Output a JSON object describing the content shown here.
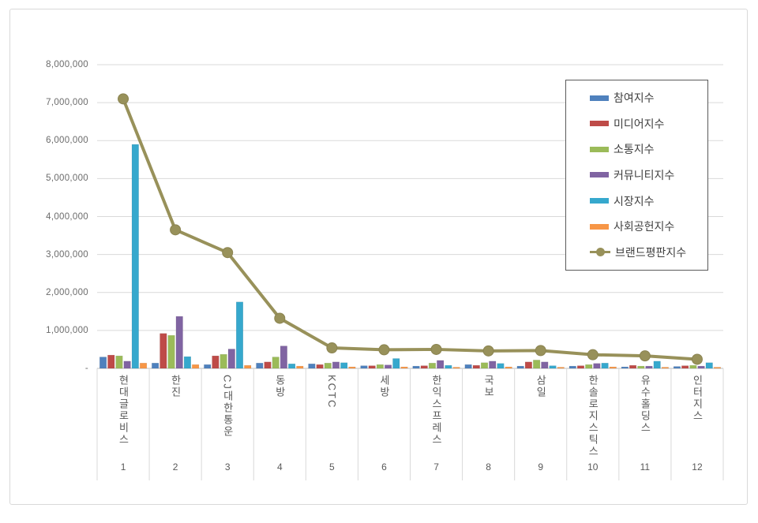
{
  "chart_data": {
    "type": "bar+line",
    "title": "",
    "categories": [
      "현대글로비스",
      "한진",
      "CJ대한통운",
      "동방",
      "KCTC",
      "세방",
      "한익스프레스",
      "국보",
      "삼일",
      "한솔로지스틱스",
      "유수홀딩스",
      "인터지스"
    ],
    "ranks": [
      "1",
      "2",
      "3",
      "4",
      "5",
      "6",
      "7",
      "8",
      "9",
      "10",
      "11",
      "12"
    ],
    "series": [
      {
        "name": "참여지수",
        "key": "participation-index",
        "type": "bar",
        "color": "#4F81BD",
        "values": [
          300000,
          140000,
          100000,
          140000,
          120000,
          70000,
          60000,
          100000,
          60000,
          60000,
          40000,
          50000
        ]
      },
      {
        "name": "미디어지수",
        "key": "media-index",
        "type": "bar",
        "color": "#BE4B48",
        "values": [
          350000,
          920000,
          330000,
          170000,
          100000,
          70000,
          70000,
          80000,
          170000,
          70000,
          80000,
          70000
        ]
      },
      {
        "name": "소통지수",
        "key": "communication-index",
        "type": "bar",
        "color": "#9BBB59",
        "values": [
          330000,
          870000,
          370000,
          300000,
          140000,
          100000,
          140000,
          150000,
          220000,
          100000,
          60000,
          80000
        ]
      },
      {
        "name": "커뮤니티지수",
        "key": "community-index",
        "type": "bar",
        "color": "#8064A2",
        "values": [
          190000,
          1370000,
          510000,
          590000,
          170000,
          90000,
          210000,
          190000,
          170000,
          130000,
          60000,
          60000
        ]
      },
      {
        "name": "시장지수",
        "key": "market-index",
        "type": "bar",
        "color": "#36A8CD",
        "values": [
          5900000,
          310000,
          1750000,
          120000,
          150000,
          260000,
          80000,
          130000,
          70000,
          140000,
          190000,
          150000
        ]
      },
      {
        "name": "사회공헌지수",
        "key": "social-contribution-index",
        "type": "bar",
        "color": "#F79646",
        "values": [
          140000,
          100000,
          80000,
          60000,
          40000,
          40000,
          20000,
          40000,
          20000,
          40000,
          20000,
          20000
        ]
      },
      {
        "name": "브랜드평판지수",
        "key": "brand-reputation-index",
        "type": "line",
        "color": "#98915A",
        "values": [
          7100000,
          3650000,
          3050000,
          1320000,
          540000,
          490000,
          500000,
          460000,
          470000,
          360000,
          330000,
          240000
        ]
      }
    ],
    "y_axis": {
      "min": 0,
      "max": 8000000,
      "step": 1000000,
      "tick_labels_top_to_bottom": [
        "8,000,000",
        "7,000,000",
        "6,000,000",
        "5,000,000",
        "4,000,000",
        "3,000,000",
        "2,000,000",
        "1,000,000",
        "-"
      ]
    },
    "xlabel": "",
    "ylabel": "",
    "grid": true,
    "legend_position": "inside-top-right",
    "colors": {
      "gridline": "#d9d9d9",
      "axis_line": "#bfbfbf",
      "tick_text": "#6b6b6b",
      "category_text": "#595959",
      "legend_border": "#5a5a5a",
      "card_border": "#d9d9d9"
    }
  }
}
